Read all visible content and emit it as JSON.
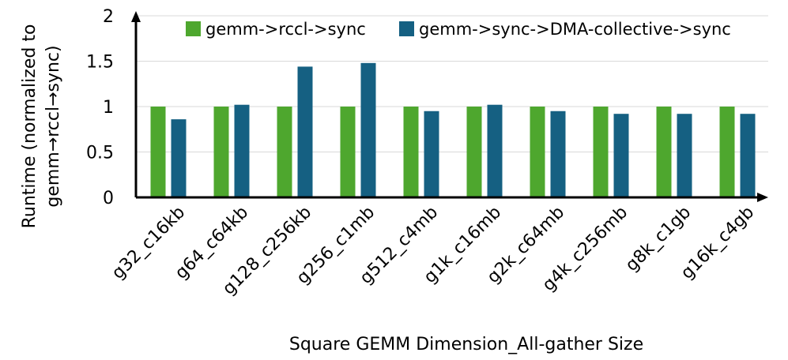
{
  "chart_data": {
    "type": "bar",
    "categories": [
      "g32_c16kb",
      "g64_c64kb",
      "g128_c256kb",
      "g256_c1mb",
      "g512_c4mb",
      "g1k_c16mb",
      "g2k_c64mb",
      "g4k_c256mb",
      "g8k_c1gb",
      "g16k_c4gb"
    ],
    "series": [
      {
        "name": "gemm->rccl->sync",
        "color": "#4EA72E",
        "values": [
          1,
          1,
          1,
          1,
          1,
          1,
          1,
          1,
          1,
          1
        ]
      },
      {
        "name": "gemm->sync->DMA-collective->sync",
        "color": "#156082",
        "values": [
          0.86,
          1.02,
          1.44,
          1.48,
          0.95,
          1.02,
          0.95,
          0.92,
          0.92,
          0.92
        ]
      }
    ],
    "title": "",
    "xlabel": "Square GEMM Dimension_All-gather Size",
    "ylabel_line1": "Runtime (normalized to",
    "ylabel_line2": "gemm→rccl→sync)",
    "ylim": [
      0,
      2
    ],
    "yticks": [
      "0",
      "0.5",
      "1",
      "1.5",
      "2"
    ],
    "grid": true,
    "legend_position": "top-right"
  }
}
